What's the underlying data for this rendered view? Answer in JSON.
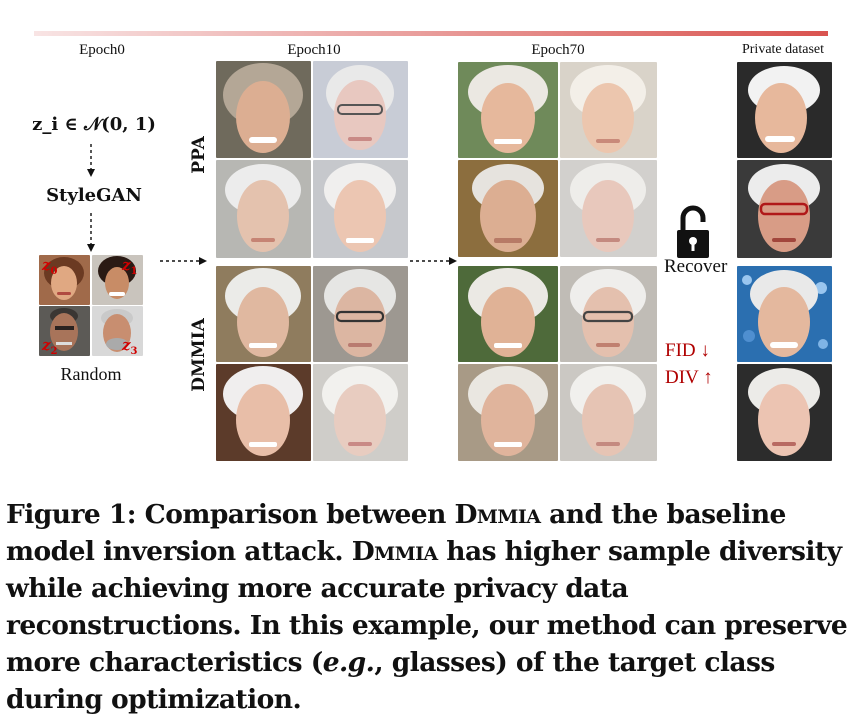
{
  "figure": {
    "epoch_labels": [
      "Epoch0",
      "Epoch10",
      "Epoch70",
      "Private dataset"
    ],
    "pipeline": {
      "formula": "z_i ∈ 𝒩(0, 1)",
      "generator": "StyleGAN",
      "random_label": "Random",
      "latent_labels": [
        "z",
        "z",
        "z",
        "z"
      ],
      "latent_subs": [
        "0",
        "1",
        "2",
        "3"
      ]
    },
    "methods": [
      "PPA",
      "DMMIA"
    ],
    "recover_label": "Recover",
    "metrics": [
      "FID ↓",
      "DIV ↑"
    ],
    "colors": {
      "timeline_start": "#f6d9d9",
      "timeline_end": "#d9534f",
      "metric_red": "#b00000",
      "latent_red": "#d00000"
    },
    "icons": [
      "unlocked-padlock-icon",
      "dashed-arrow-down-icon",
      "dashed-arrow-right-icon"
    ]
  },
  "caption": {
    "prefix": "Figure 1: Comparison between ",
    "name1": "Dmmia",
    "mid1": " and the baseline model inversion attack. ",
    "name2": "Dmmia",
    "mid2": " has higher sample diversity while achieving more accurate privacy data reconstructions. In this example, our method can preserve more characteristics (",
    "eg": "e.g.",
    "suffix": ", glasses) of the target class during optimization."
  }
}
